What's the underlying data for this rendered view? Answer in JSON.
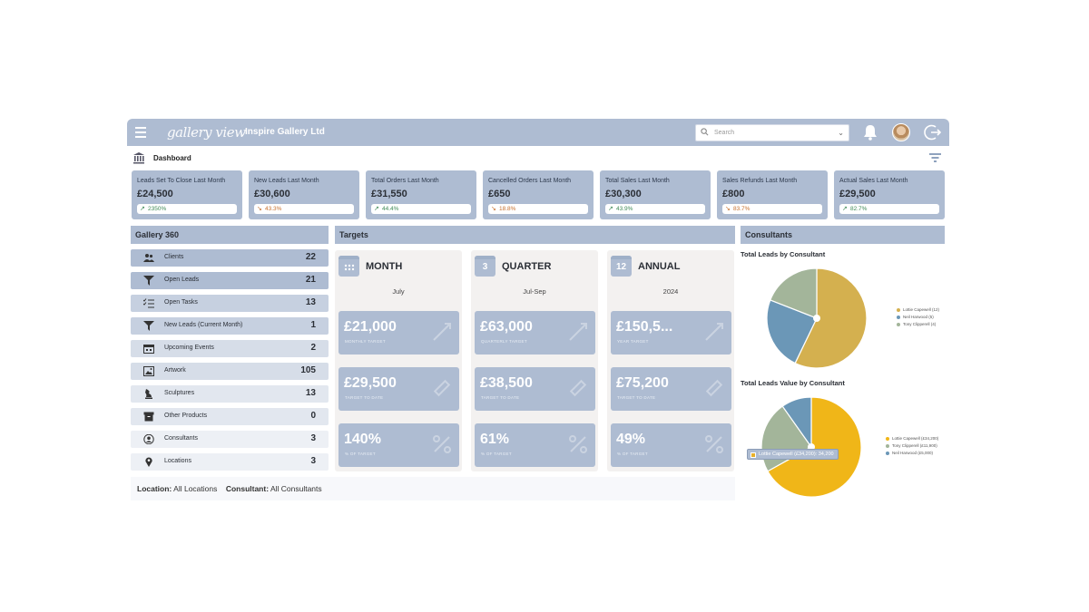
{
  "header": {
    "logo": "gallery view",
    "company": "Inspire Gallery Ltd",
    "search_placeholder": "Search"
  },
  "subheader": {
    "title": "Dashboard"
  },
  "kpis": [
    {
      "label": "Leads Set To Close Last Month",
      "value": "£24,500",
      "change": "2350%",
      "trend": "up"
    },
    {
      "label": "New Leads Last Month",
      "value": "£30,600",
      "change": "43.3%",
      "trend": "down"
    },
    {
      "label": "Total Orders Last Month",
      "value": "£31,550",
      "change": "44.4%",
      "trend": "up"
    },
    {
      "label": "Cancelled Orders Last Month",
      "value": "£650",
      "change": "18.8%",
      "trend": "down"
    },
    {
      "label": "Total Sales Last Month",
      "value": "£30,300",
      "change": "43.9%",
      "trend": "up"
    },
    {
      "label": "Sales Refunds Last Month",
      "value": "£800",
      "change": "83.7%",
      "trend": "down"
    },
    {
      "label": "Actual Sales Last Month",
      "value": "£29,500",
      "change": "82.7%",
      "trend": "up"
    }
  ],
  "gallery360": {
    "title": "Gallery 360",
    "items": [
      {
        "label": "Clients",
        "count": "22",
        "icon": "users-icon"
      },
      {
        "label": "Open Leads",
        "count": "21",
        "icon": "funnel-icon"
      },
      {
        "label": "Open Tasks",
        "count": "13",
        "icon": "tasks-icon"
      },
      {
        "label": "New Leads (Current Month)",
        "count": "1",
        "icon": "funnel-icon"
      },
      {
        "label": "Upcoming Events",
        "count": "2",
        "icon": "calendar-icon"
      },
      {
        "label": "Artwork",
        "count": "105",
        "icon": "picture-icon"
      },
      {
        "label": "Sculptures",
        "count": "13",
        "icon": "sculpture-icon"
      },
      {
        "label": "Other Products",
        "count": "0",
        "icon": "box-icon"
      },
      {
        "label": "Consultants",
        "count": "3",
        "icon": "person-icon"
      },
      {
        "label": "Locations",
        "count": "3",
        "icon": "map-pin-icon"
      }
    ]
  },
  "filters": {
    "location_label": "Location:",
    "location_value": "All Locations",
    "consultant_label": "Consultant:",
    "consultant_value": "All Consultants"
  },
  "targets": {
    "title": "Targets",
    "columns": [
      {
        "badge": "",
        "title": "MONTH",
        "period": "July",
        "cards": [
          {
            "value": "£21,000",
            "caption": "MONTHLY TARGET"
          },
          {
            "value": "£29,500",
            "caption": "TARGET TO DATE"
          },
          {
            "value": "140%",
            "caption": "% OF TARGET"
          }
        ]
      },
      {
        "badge": "3",
        "title": "QUARTER",
        "period": "Jul-Sep",
        "cards": [
          {
            "value": "£63,000",
            "caption": "QUARTERLY TARGET"
          },
          {
            "value": "£38,500",
            "caption": "TARGET TO DATE"
          },
          {
            "value": "61%",
            "caption": "% OF TARGET"
          }
        ]
      },
      {
        "badge": "12",
        "title": "ANNUAL",
        "period": "2024",
        "cards": [
          {
            "value": "£150,5...",
            "caption": "YEAR TARGET"
          },
          {
            "value": "£75,200",
            "caption": "TARGET TO DATE"
          },
          {
            "value": "49%",
            "caption": "% OF TARGET"
          }
        ]
      }
    ]
  },
  "consultants": {
    "title": "Consultants",
    "chart1_title": "Total Leads by Consultant",
    "chart2_title": "Total Leads Value by Consultant",
    "tooltip": "Lottie Capewell (£34,200): 34,200"
  },
  "colors": {
    "accent": "#aebcd2",
    "lottie": "#d4b04f",
    "neil": "#6b97b7",
    "tony": "#a3b59a"
  },
  "chart_data": [
    {
      "type": "pie",
      "title": "Total Leads by Consultant",
      "categories": [
        "Lottie Capewell",
        "Neil Harwood",
        "Tony Clipperell"
      ],
      "legend": [
        "Lottie Capewell (12)",
        "Neil Harwood (5)",
        "Tony Clipperell (4)"
      ],
      "values": [
        12,
        5,
        4
      ],
      "colors": [
        "#d4b04f",
        "#6b97b7",
        "#a3b59a"
      ],
      "legend_position": "right"
    },
    {
      "type": "pie",
      "title": "Total Leads Value by Consultant",
      "categories": [
        "Lottie Capewell",
        "Tony Clipperell",
        "Neil Harwood"
      ],
      "legend": [
        "Lottie Capewell (£34,200)",
        "Tony Clipperell (£11,900)",
        "Neil Harwood (£5,000)"
      ],
      "values": [
        34200,
        11900,
        5000
      ],
      "colors": [
        "#f0b618",
        "#a3b59a",
        "#6b97b7"
      ],
      "legend_position": "right"
    }
  ]
}
